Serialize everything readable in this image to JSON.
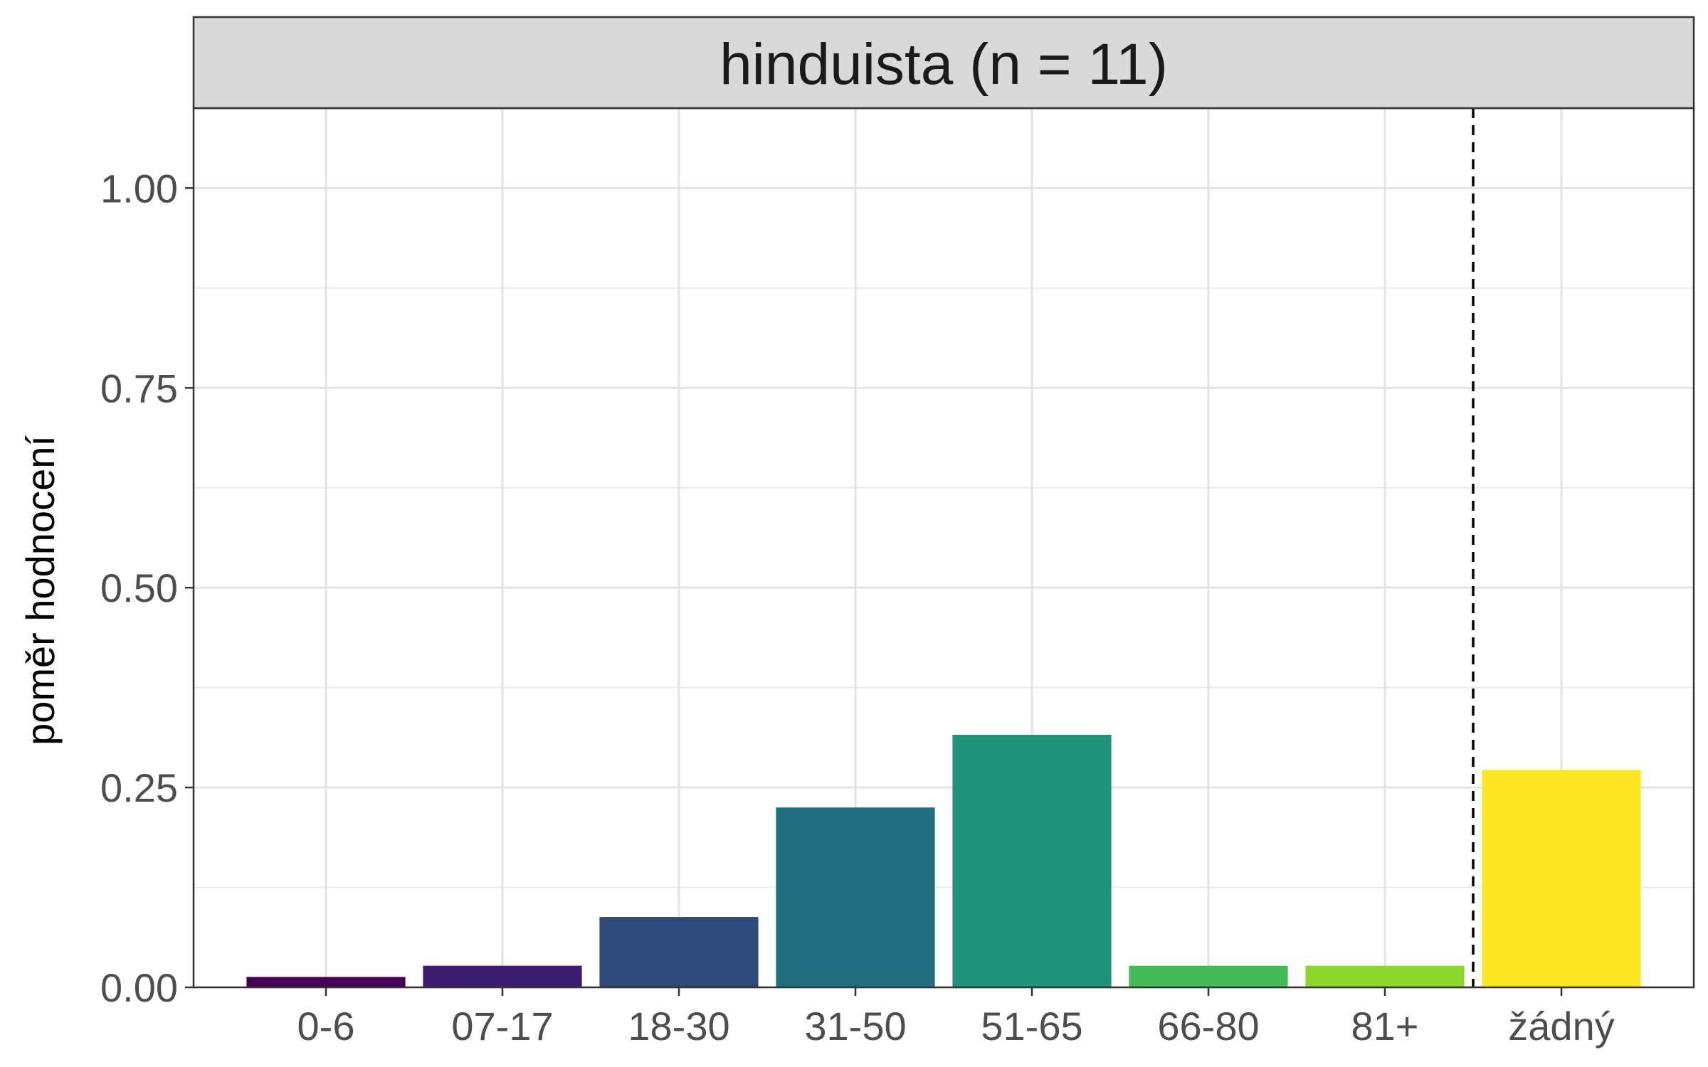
{
  "chart_data": {
    "type": "bar",
    "facet_title": "hinduista (n = 11)",
    "ylabel": "poměr hodnocení",
    "xlabel": "",
    "ylim": [
      0,
      1.1
    ],
    "y_ticks": [
      0.0,
      0.25,
      0.5,
      0.75,
      1.0
    ],
    "y_tick_labels": [
      "0.00",
      "0.25",
      "0.50",
      "0.75",
      "1.00"
    ],
    "categories": [
      "0-6",
      "07-17",
      "18-30",
      "31-50",
      "51-65",
      "66-80",
      "81+",
      "žádný"
    ],
    "values": [
      0.013,
      0.027,
      0.088,
      0.225,
      0.316,
      0.027,
      0.027,
      0.272
    ],
    "colors": [
      "#440154",
      "#3B1C6E",
      "#2D4A7A",
      "#216E7E",
      "#21937A",
      "#44BB57",
      "#8CD62E",
      "#FDE725"
    ],
    "reference_line": {
      "between": [
        "81+",
        "žádný"
      ],
      "style": "dashed"
    },
    "grid": true
  }
}
